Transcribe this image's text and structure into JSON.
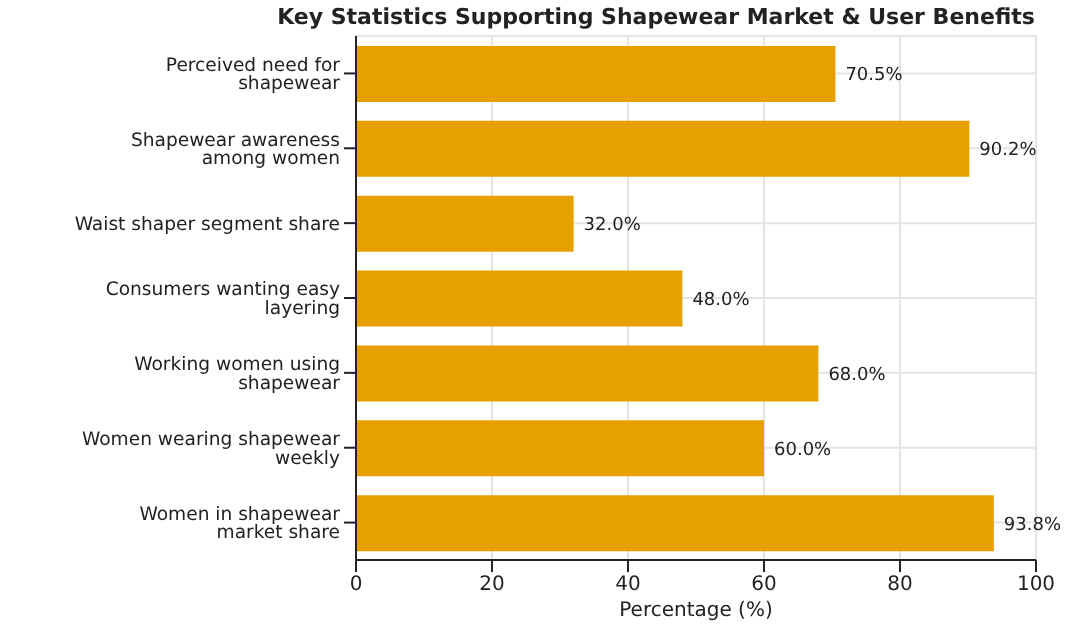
{
  "chart_data": {
    "type": "bar",
    "orientation": "horizontal",
    "title": "Key Statistics Supporting Shapewear Market & User Benefits",
    "xlabel": "Percentage (%)",
    "categories": [
      "Perceived need for shapewear",
      "Shapewear awareness among women",
      "Waist shaper segment share",
      "Consumers wanting easy layering",
      "Working women using shapewear",
      "Women wearing shapewear weekly",
      "Women in shapewear market share"
    ],
    "values": [
      70.5,
      90.2,
      32.0,
      48.0,
      68.0,
      60.0,
      93.8
    ],
    "value_labels": [
      "70.5%",
      "90.2%",
      "32.0%",
      "48.0%",
      "68.0%",
      "60.0%",
      "93.8%"
    ],
    "color": "#e6a000",
    "xlim": [
      0,
      100
    ],
    "xticks": [
      0,
      20,
      40,
      60,
      80,
      100
    ],
    "grid": true
  }
}
